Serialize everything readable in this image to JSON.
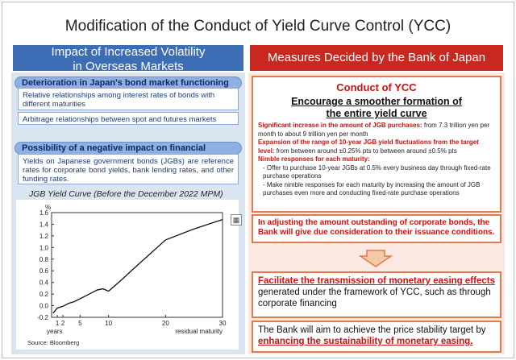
{
  "title": "Modification of the Conduct of Yield Curve Control (YCC)",
  "left_header": {
    "line1": "Impact of Increased Volatility",
    "line2": "in Overseas Markets"
  },
  "right_header": "Measures Decided by the Bank of Japan",
  "left": {
    "section1_title": "Deterioration in Japan's bond market functioning",
    "section1_box1": "Relative relationships among interest rates of bonds with different maturities",
    "section1_box2": "Arbitrage relationships between spot and futures markets",
    "section2_title": "Possibility of a negative impact on financial conditions",
    "section2_box": "Yields on Japanese government bonds (JGBs) are reference rates for corporate bond yields, bank lending rates, and other funding rates.",
    "chart_title": "JGB Yield Curve (Before the December 2022 MPM)",
    "source": "Source: Bloomberg"
  },
  "chart_data": {
    "type": "line",
    "title": "JGB Yield Curve (Before the December 2022 MPM)",
    "xlabel": "residual maturity",
    "xlabel_left": "years",
    "ylabel": "%",
    "xlim": [
      0,
      30
    ],
    "ylim": [
      -0.2,
      1.6
    ],
    "yticks": [
      "-0.2",
      "0.0",
      "0.2",
      "0.4",
      "0.6",
      "0.8",
      "1.0",
      "1.2",
      "1.4",
      "1.6"
    ],
    "xticks": [
      "1",
      "2",
      "5",
      "10",
      "20",
      "30"
    ],
    "series": [
      {
        "name": "JGB yield",
        "x": [
          0.25,
          1,
          2,
          3,
          4,
          5,
          6,
          7,
          8,
          9,
          10,
          12,
          15,
          20,
          25,
          30
        ],
        "y": [
          -0.13,
          -0.04,
          -0.01,
          0.04,
          0.07,
          0.12,
          0.17,
          0.22,
          0.27,
          0.29,
          0.25,
          0.42,
          0.69,
          1.13,
          1.32,
          1.48
        ]
      }
    ]
  },
  "right": {
    "conduct_title": "Conduct of YCC",
    "subtitle1": "Encourage a smoother formation of",
    "subtitle2": "the entire yield curve",
    "p1_red": "Significant increase in the amount of JGB purchases:",
    "p1_black": "from 7.3 trillion yen per month to about 9 trillion yen per month",
    "p2_red": "Expansion of the range of 10-year JGB yield fluctuations from the target level:",
    "p2_black": "from between around ±0.25% pts to between around ±0.5% pts",
    "p3_red": "Nimble responses for each maturity:",
    "bullet1": "- Offer to purchase 10-year JGBs at 0.5% every business day through fixed-rate purchase operations",
    "bullet2": "- Make nimble responses for each maturity by increasing the amount of JGB purchases even more and conducting fixed-rate purchase operations",
    "corporate_note": "In adjusting the amount outstanding of corporate bonds, the Bank will give due consideration to their issuance conditions.",
    "box2_red": "Facilitate the transmission of monetary easing effects",
    "box2_black": "generated under the framework of YCC, such as through corporate financing",
    "box3_black": "The Bank will aim to achieve the price stability target by",
    "box3_red": "enhancing the sustainability of monetary easing."
  }
}
